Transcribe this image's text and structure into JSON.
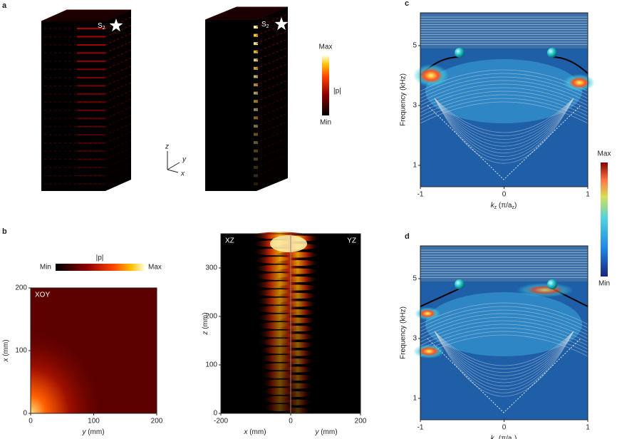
{
  "panels": {
    "a": {
      "label": "a",
      "source": {
        "main": "S",
        "sub": "2"
      },
      "colorbar": {
        "max": "Max",
        "title": "|p|",
        "min": "Min"
      },
      "axes": [
        "z",
        "y",
        "x"
      ]
    },
    "b": {
      "label": "b",
      "colorbar": {
        "min": "Min",
        "title": "|p|",
        "max": "Max"
      },
      "xoy": {
        "title": "XOY",
        "xticks": [
          0,
          100,
          200
        ],
        "yticks": [
          0,
          100,
          200
        ],
        "xlabel": {
          "var": "y",
          "unit": "(mm)"
        },
        "ylabel": {
          "var": "x",
          "unit": "(mm)"
        }
      },
      "xz": {
        "left_title": "XZ",
        "right_title": "YZ",
        "xticks": [
          -200,
          0,
          200
        ],
        "yticks": [
          0,
          100,
          200,
          300
        ],
        "xlabel_left": {
          "var": "x",
          "unit": "(mm)"
        },
        "xlabel_right": {
          "var": "y",
          "unit": "(mm)"
        },
        "ylabel": {
          "var": "z",
          "unit": "(mm)"
        }
      }
    },
    "c": {
      "label": "c",
      "yticks": [
        1,
        3,
        5
      ],
      "xticks": [
        -1,
        0,
        1
      ],
      "ylabel": "Frequency (kHz)",
      "xlabel": {
        "var": "k",
        "sub": "z",
        "unit": "(π/a",
        "unit_sub": "z",
        "close": ")"
      }
    },
    "d": {
      "label": "d",
      "yticks": [
        1,
        3,
        5
      ],
      "xticks": [
        -1,
        0,
        1
      ],
      "ylabel": "Frequency (kHz)",
      "xlabel": {
        "var": "k",
        "sub": "z",
        "unit": "(π/a",
        "unit_sub": "z",
        "close": ")"
      }
    },
    "colorbar_cd": {
      "max": "Max",
      "min": "Min"
    }
  }
}
